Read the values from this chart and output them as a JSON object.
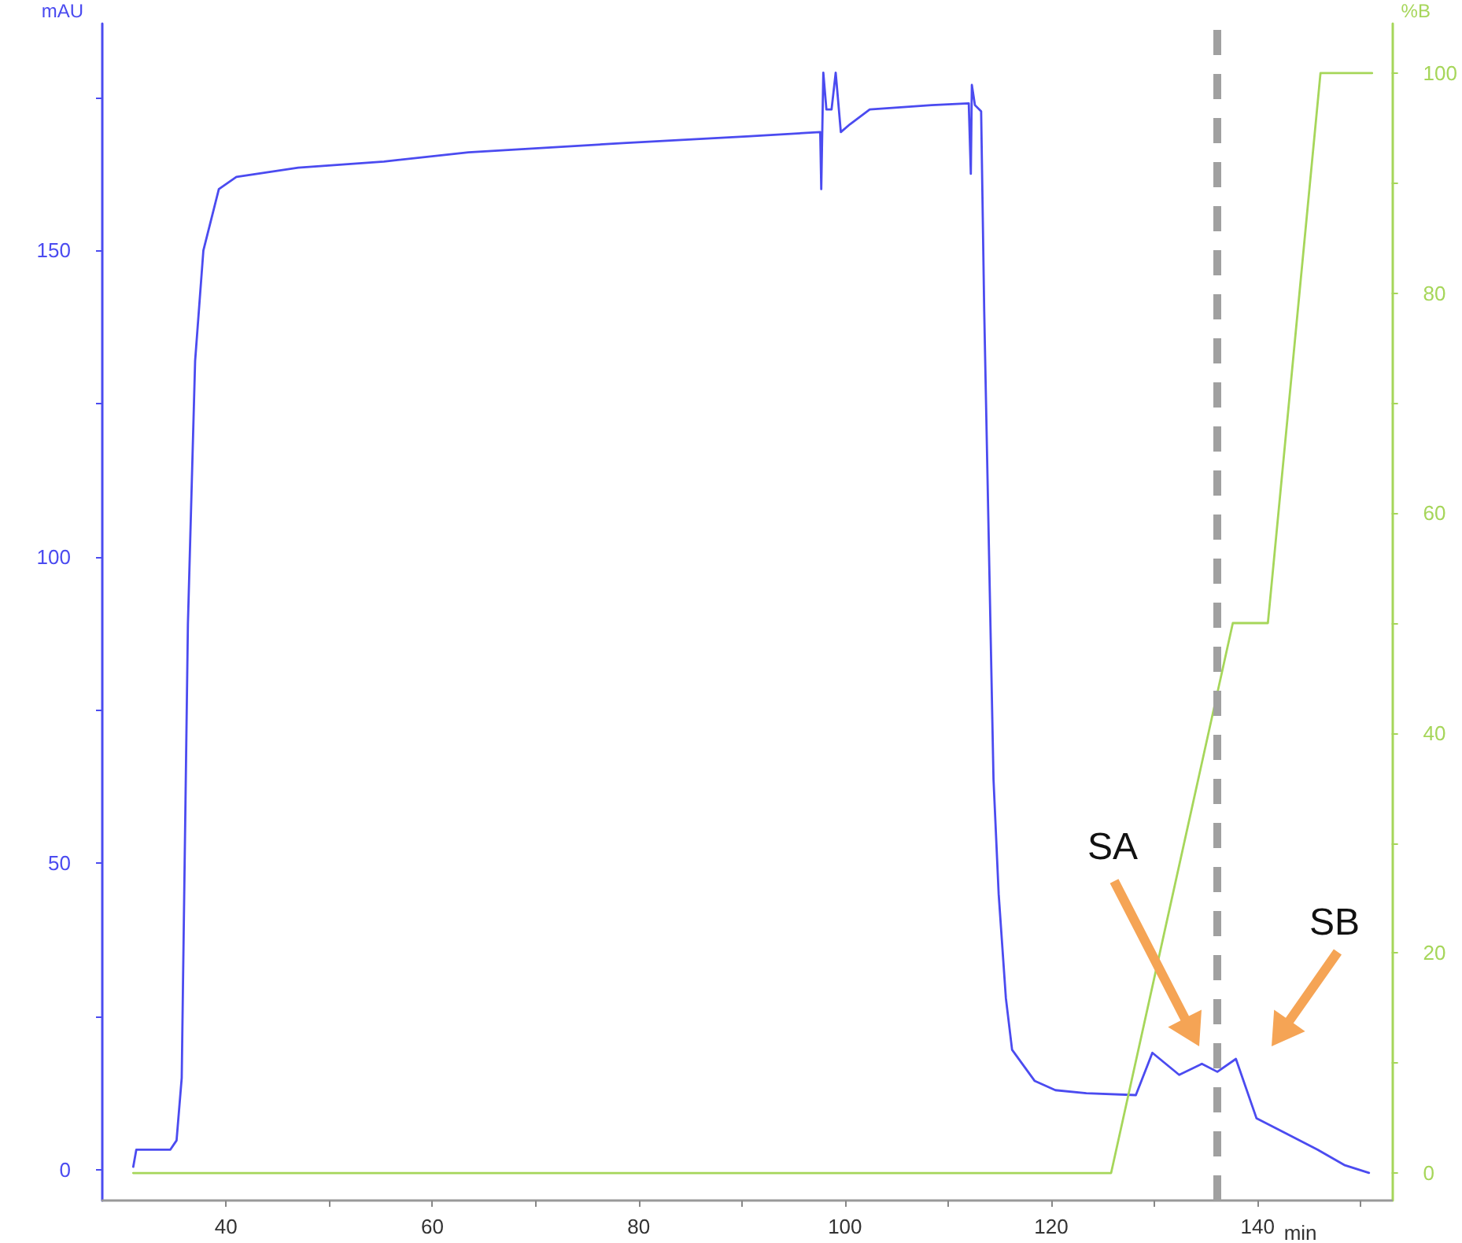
{
  "chart_data": {
    "type": "line",
    "xlabel": "min",
    "ylabel": "mAU",
    "y2label": "%B",
    "xlim": [
      28,
      153
    ],
    "xticks": [
      40,
      {
        "value": 50,
        "label": null
      },
      60,
      {
        "value": 70,
        "label": null
      },
      80,
      {
        "value": 90,
        "label": null
      },
      100,
      {
        "value": 110,
        "label": null
      },
      120,
      {
        "value": 130,
        "label": null
      },
      140,
      {
        "value": 150,
        "label": null
      }
    ],
    "ylim": [
      -5,
      187
    ],
    "yticks": [
      0,
      {
        "value": 25,
        "label": null
      },
      50,
      {
        "value": 75,
        "label": null
      },
      100,
      {
        "value": 125,
        "label": null
      },
      150,
      {
        "value": 175,
        "label": null
      }
    ],
    "y2lim": [
      -2.5,
      104.5
    ],
    "y2ticks": [
      0,
      {
        "value": 10,
        "label": null
      },
      20,
      {
        "value": 30,
        "label": null
      },
      40,
      {
        "value": 50,
        "label": null
      },
      60,
      {
        "value": 70,
        "label": null
      },
      80,
      {
        "value": 90,
        "label": null
      },
      100
    ],
    "grid": false,
    "legend": false,
    "marker": "none",
    "line_style": "solid",
    "series": [
      {
        "color": "#4b4bf0",
        "x": [
          31.0,
          31.3,
          34.6,
          35.2,
          35.7,
          36.3,
          37.0,
          37.8,
          39.3,
          41.0,
          47.0,
          55.3,
          63.5,
          78.5,
          90.5,
          97.6,
          97.7,
          97.9,
          98.2,
          98.7,
          99.1,
          99.6,
          100.5,
          102.4,
          108.4,
          112.0,
          112.2,
          112.3,
          112.6,
          113.2,
          113.5,
          114.4,
          114.9,
          115.6,
          116.2,
          118.4,
          120.4,
          123.4,
          128.2,
          129.8,
          132.4,
          134.6,
          136.1,
          137.9,
          139.9,
          142.8,
          145.8,
          148.4,
          150.8
        ],
        "values": [
          0.5,
          3.3,
          3.3,
          4.8,
          15,
          89,
          132,
          150,
          160,
          162,
          163.5,
          164.5,
          166,
          167.5,
          168.6,
          169.3,
          160,
          179,
          173,
          173,
          179,
          169.3,
          170.6,
          173,
          173.7,
          174,
          162.5,
          177,
          173.7,
          172.7,
          140,
          63.7,
          45,
          28,
          19.6,
          14.5,
          13,
          12.5,
          12.2,
          19.1,
          15.5,
          17.3,
          16,
          18.1,
          8.4,
          5.9,
          3.3,
          0.8,
          -0.5
        ]
      },
      {
        "color": "#a6d65a",
        "axis": "y2",
        "x": [
          31.0,
          125.8,
          137.6,
          141.0,
          146.1,
          151.1
        ],
        "values": [
          0,
          0,
          50,
          50,
          100,
          100
        ]
      }
    ],
    "ref_lines": [
      {
        "axis": "x",
        "value": 136.1,
        "color": "#a0a0a0",
        "line_style": "dashed"
      }
    ],
    "annotations": [
      "SA",
      "SB"
    ]
  }
}
